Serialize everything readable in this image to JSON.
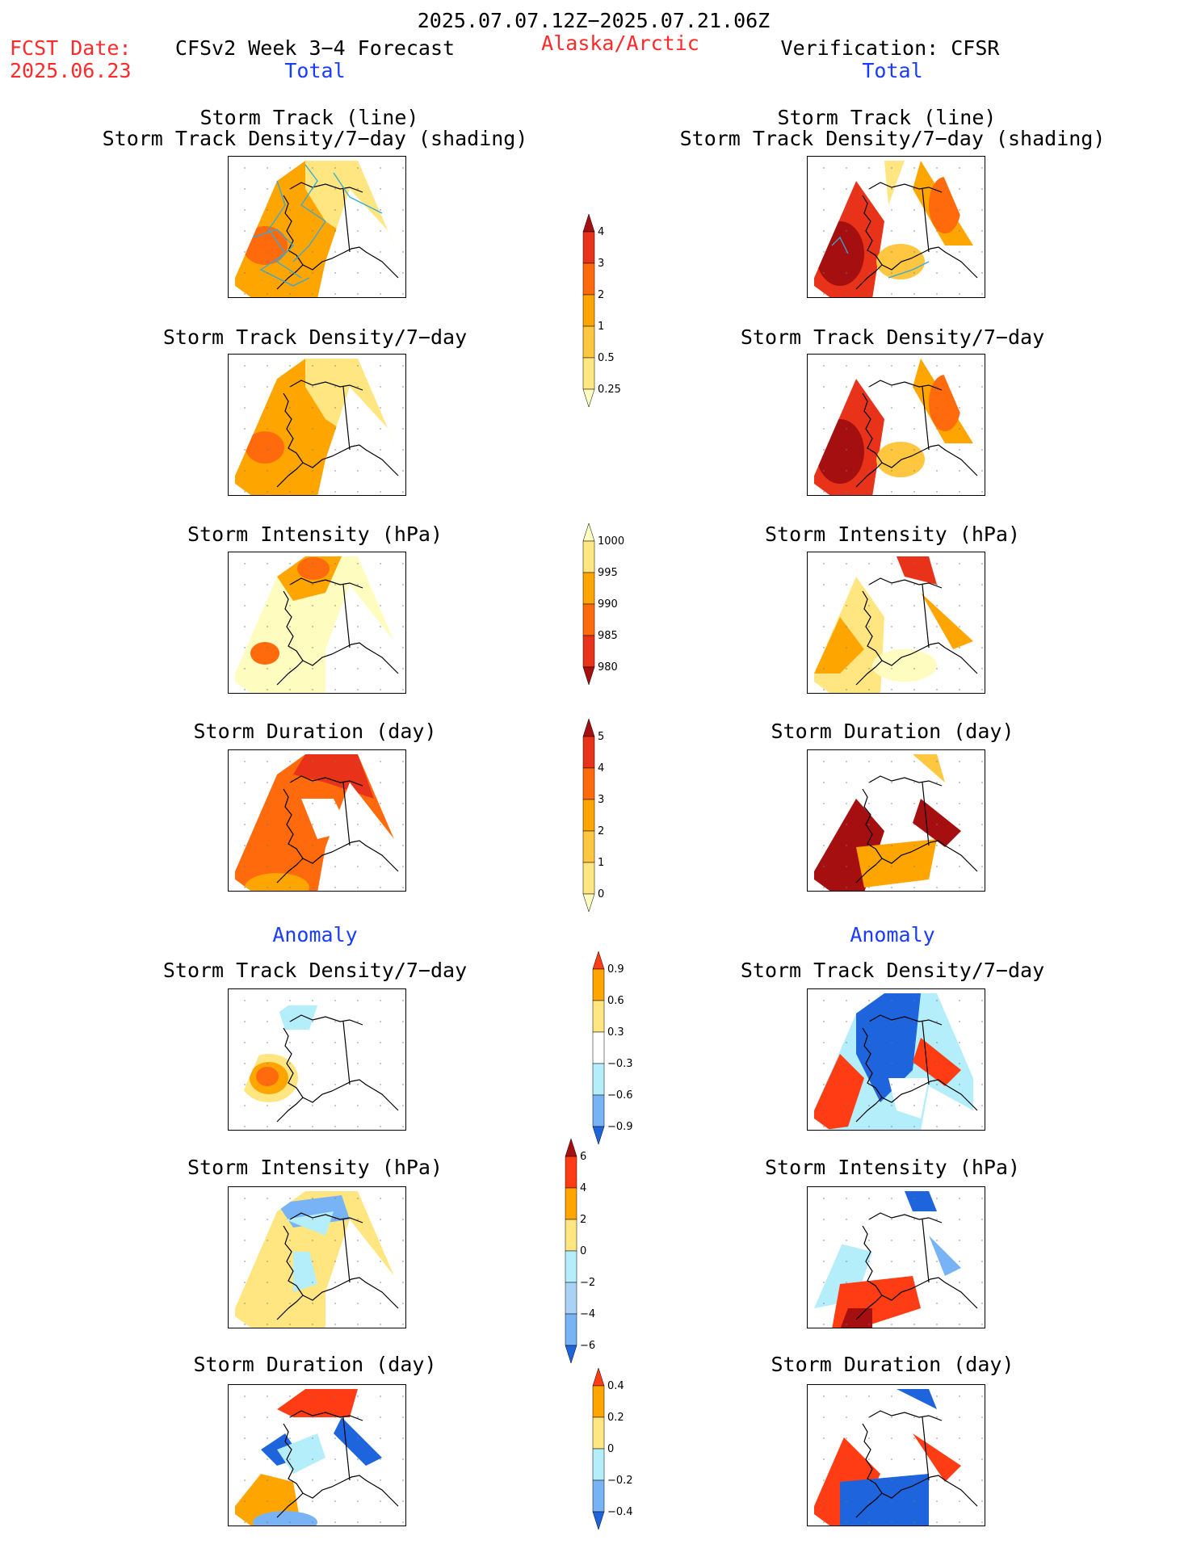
{
  "header": {
    "period": "2025.07.07.12Z−2025.07.21.06Z",
    "fcst_label": "FCST Date:",
    "fcst_date": "2025.06.23",
    "forecast_title": "CFSv2 Week 3−4 Forecast",
    "region": "Alaska/Arctic",
    "verification_title": "Verification: CFSR",
    "left_subtitle": "Total",
    "right_subtitle": "Total"
  },
  "sections": {
    "anomaly_left": "Anomaly",
    "anomaly_right": "Anomaly"
  },
  "panels": {
    "left": [
      {
        "id": "L1",
        "title_line1": "Storm Track (line)",
        "title_line2": "Storm Track Density/7−day (shading)"
      },
      {
        "id": "L2",
        "title_line1": "Storm Track Density/7−day"
      },
      {
        "id": "L3",
        "title_line1": "Storm Intensity (hPa)"
      },
      {
        "id": "L4",
        "title_line1": "Storm Duration (day)"
      },
      {
        "id": "L5",
        "title_line1": "Storm Track Density/7−day"
      },
      {
        "id": "L6",
        "title_line1": "Storm Intensity (hPa)"
      },
      {
        "id": "L7",
        "title_line1": "Storm Duration (day)"
      }
    ],
    "right": [
      {
        "id": "R1",
        "title_line1": "Storm Track (line)",
        "title_line2": "Storm Track Density/7−day (shading)"
      },
      {
        "id": "R2",
        "title_line1": "Storm Track Density/7−day"
      },
      {
        "id": "R3",
        "title_line1": "Storm Intensity (hPa)"
      },
      {
        "id": "R4",
        "title_line1": "Storm Duration (day)"
      },
      {
        "id": "R5",
        "title_line1": "Storm Track Density/7−day"
      },
      {
        "id": "R6",
        "title_line1": "Storm Intensity (hPa)"
      },
      {
        "id": "R7",
        "title_line1": "Storm Duration (day)"
      }
    ]
  },
  "colorbars": [
    {
      "id": "density-total",
      "ticks": [
        "4",
        "3",
        "2",
        "1",
        "0.5",
        "0.25"
      ],
      "colors": [
        "#a50f0f",
        "#e8331a",
        "#ff6a0d",
        "#ffa500",
        "#ffc640",
        "#ffe680",
        "#fffcc0"
      ]
    },
    {
      "id": "intensity-total",
      "ticks": [
        "1000",
        "995",
        "990",
        "985",
        "980"
      ],
      "colors": [
        "#fffcc0",
        "#ffe680",
        "#ffa500",
        "#ff6a0d",
        "#e8331a",
        "#a50f0f"
      ]
    },
    {
      "id": "duration-total",
      "ticks": [
        "5",
        "4",
        "3",
        "2",
        "1",
        "0"
      ],
      "colors": [
        "#a50f0f",
        "#e8331a",
        "#ff6a0d",
        "#ffa500",
        "#ffc640",
        "#ffe680",
        "#fffcc0"
      ]
    },
    {
      "id": "density-anom",
      "ticks": [
        "0.9",
        "0.6",
        "0.3",
        "−0.3",
        "−0.6",
        "−0.9"
      ],
      "colors": [
        "#ff3c14",
        "#ffa500",
        "#ffe680",
        "#ffffff",
        "#b4eefa",
        "#78b4f5",
        "#1e64dc"
      ]
    },
    {
      "id": "intensity-anom",
      "ticks": [
        "6",
        "4",
        "2",
        "0",
        "−2",
        "−4",
        "−6"
      ],
      "colors": [
        "#a50f0f",
        "#ff3c14",
        "#ffa500",
        "#ffe680",
        "#b4eefa",
        "#aad2f5",
        "#78b4f5",
        "#1e64dc"
      ]
    },
    {
      "id": "duration-anom",
      "ticks": [
        "0.4",
        "0.2",
        "0",
        "−0.2",
        "−0.4"
      ],
      "colors": [
        "#ff3c14",
        "#ffa500",
        "#ffe680",
        "#b4eefa",
        "#78b4f5",
        "#1e64dc"
      ]
    }
  ],
  "chart_data": {
    "type": "heatmap",
    "title": "2025.07.07.12Z−2025.07.21.06Z",
    "region": "Alaska/Arctic",
    "variables": [
      "Storm Track Density/7−day",
      "Storm Intensity (hPa)",
      "Storm Duration (day)"
    ],
    "columns": [
      "CFSv2 Week 3−4 Forecast",
      "Verification: CFSR"
    ],
    "groups": [
      "Total",
      "Anomaly"
    ],
    "colorbar_levels": {
      "density_total": [
        0.25,
        0.5,
        1,
        2,
        3,
        4
      ],
      "intensity_total": [
        1000,
        995,
        990,
        985,
        980
      ],
      "duration_total": [
        0,
        1,
        2,
        3,
        4,
        5
      ],
      "density_anomaly": [
        -0.9,
        -0.6,
        -0.3,
        0.3,
        0.6,
        0.9
      ],
      "intensity_anomaly": [
        -6,
        -4,
        -2,
        0,
        2,
        4,
        6
      ],
      "duration_anomaly": [
        -0.4,
        -0.2,
        0,
        0.2,
        0.4
      ]
    }
  }
}
